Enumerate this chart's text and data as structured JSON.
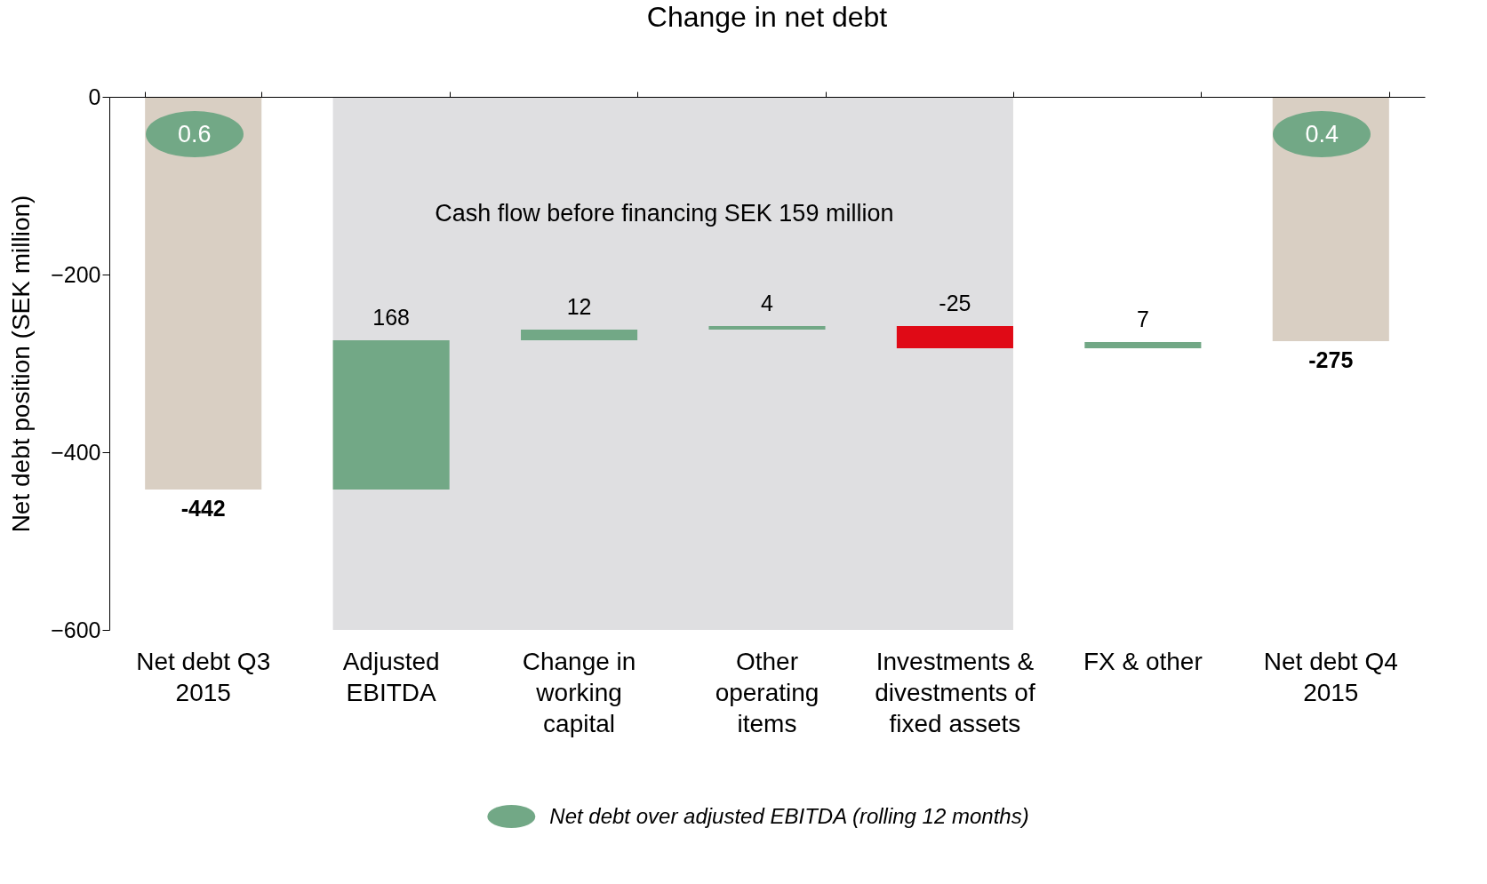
{
  "chart_data": {
    "type": "bar",
    "title": "Change in net debt",
    "ylabel": "Net debt position (SEK million)",
    "categories": [
      "Net debt Q3 2015",
      "Adjusted EBITDA",
      "Change in working capital",
      "Other operating items",
      "Investments & divestments of fixed assets",
      "FX & other",
      "Net debt Q4 2015"
    ],
    "values": [
      -442,
      168,
      12,
      4,
      -25,
      7,
      -275
    ],
    "base": [
      0,
      -442,
      -274,
      -262,
      -258,
      -283,
      0
    ],
    "colors": [
      "#d9cfc3",
      "#72a886",
      "#72a886",
      "#72a886",
      "#e00a16",
      "#72a886",
      "#d9cfc3"
    ],
    "ylim": [
      -600,
      0
    ],
    "yticks": [
      0,
      -200,
      -400,
      -600
    ],
    "data_labels": true,
    "bands": [
      {
        "axis": "x",
        "from": "Adjusted EBITDA",
        "to": "Investments & divestments of fixed assets",
        "label": "Cash flow before financing SEK 159 million",
        "color": "#dfdfe1"
      }
    ],
    "annotations": [
      "0.6",
      "0.4",
      "Net debt over adjusted EBITDA (rolling 12 months)"
    ]
  }
}
